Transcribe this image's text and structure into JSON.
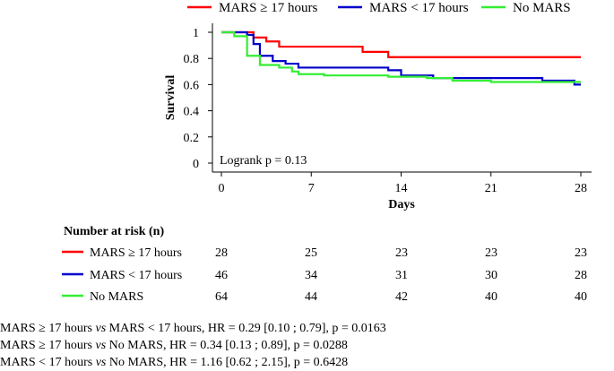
{
  "chart_data": {
    "type": "line",
    "subtype": "kaplan-meier",
    "ylabel": "Survival",
    "xlabel": "Days",
    "xlim": [
      0,
      28
    ],
    "ylim": [
      0,
      1
    ],
    "xticks": [
      "0",
      "7",
      "14",
      "21",
      "28"
    ],
    "xtick_values": [
      0,
      7,
      14,
      21,
      28
    ],
    "yticks": [
      "0",
      "0.2",
      "0.4",
      "0.6",
      "0.8",
      "1"
    ],
    "ytick_values": [
      0,
      0.2,
      0.4,
      0.6,
      0.8,
      1
    ],
    "legend_position": "top",
    "annotation": "Logrank p = 0.13",
    "series": [
      {
        "name": "MARS ≥ 17 hours",
        "color": "#ff0000",
        "steps": [
          [
            0,
            1.0
          ],
          [
            2.5,
            0.96
          ],
          [
            3.5,
            0.93
          ],
          [
            4.5,
            0.89
          ],
          [
            11,
            0.85
          ],
          [
            13,
            0.81
          ],
          [
            28,
            0.81
          ]
        ]
      },
      {
        "name": "MARS < 17 hours",
        "color": "#0000cc",
        "steps": [
          [
            0,
            1.0
          ],
          [
            2,
            0.98
          ],
          [
            2.5,
            0.91
          ],
          [
            3,
            0.82
          ],
          [
            4,
            0.78
          ],
          [
            5,
            0.76
          ],
          [
            6,
            0.73
          ],
          [
            13,
            0.71
          ],
          [
            14,
            0.67
          ],
          [
            16.5,
            0.65
          ],
          [
            25,
            0.63
          ],
          [
            27.5,
            0.6
          ],
          [
            28,
            0.6
          ]
        ]
      },
      {
        "name": "No MARS",
        "color": "#33ee33",
        "steps": [
          [
            0,
            1.0
          ],
          [
            1,
            0.97
          ],
          [
            2,
            0.82
          ],
          [
            3,
            0.75
          ],
          [
            4.5,
            0.73
          ],
          [
            5.5,
            0.7
          ],
          [
            6,
            0.68
          ],
          [
            8,
            0.67
          ],
          [
            13,
            0.66
          ],
          [
            16,
            0.65
          ],
          [
            18,
            0.63
          ],
          [
            21,
            0.62
          ],
          [
            27.5,
            0.62
          ],
          [
            28,
            0.62
          ]
        ]
      }
    ]
  },
  "risk_table": {
    "title": "Number at risk (n)",
    "columns": [
      "0",
      "7",
      "14",
      "21",
      "28"
    ],
    "rows": [
      {
        "label": "MARS ≥ 17 hours",
        "color": "#ff0000",
        "values": [
          "28",
          "25",
          "23",
          "23",
          "23"
        ]
      },
      {
        "label": "MARS < 17 hours",
        "color": "#0000cc",
        "values": [
          "46",
          "34",
          "31",
          "30",
          "28"
        ]
      },
      {
        "label": "No MARS",
        "color": "#33ee33",
        "values": [
          "64",
          "44",
          "42",
          "40",
          "40"
        ]
      }
    ]
  },
  "comparisons": [
    {
      "a": "MARS ≥ 17 hours ",
      "vs": "vs",
      "b": " MARS < 17 hours, HR = 0.29 [0.10 ; 0.79], p = 0.0163"
    },
    {
      "a": "MARS ≥ 17 hours ",
      "vs": "vs",
      "b": " No MARS, HR = 0.34 [0.13 ; 0.89], p = 0.0288"
    },
    {
      "a": "MARS < 17 hours ",
      "vs": "vs",
      "b": " No MARS, HR = 1.16 [0.62 ; 2.15], p = 0.6428"
    }
  ]
}
